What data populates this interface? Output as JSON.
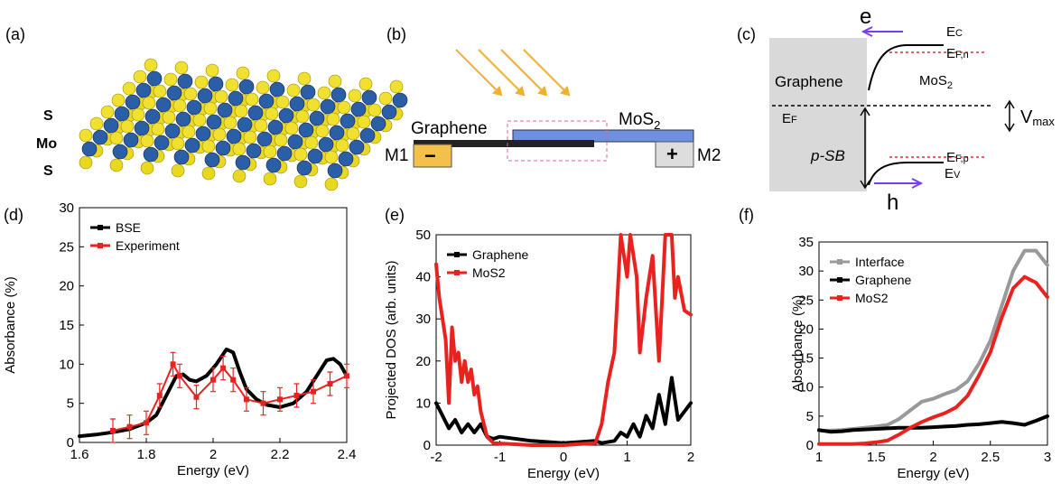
{
  "panels": {
    "a": {
      "label": "(a)",
      "layers": [
        "S",
        "Mo",
        "S"
      ]
    },
    "b": {
      "label": "(b)",
      "graphene": "Graphene",
      "mos2": {
        "main": "MoS",
        "sub": "2"
      },
      "m1": "M1",
      "m2": "M2",
      "minus": "−",
      "plus": "+"
    },
    "c": {
      "label": "(c)",
      "graphene": "Graphene",
      "mos2": {
        "main": "MoS",
        "sub": "2"
      },
      "electron": "e",
      "hole": "h",
      "ec": {
        "main": "E",
        "sub": "C"
      },
      "efn": {
        "main": "E",
        "sub": "F,n"
      },
      "ef": {
        "main": "E",
        "sub": "F"
      },
      "efp": {
        "main": "E",
        "sub": "F,p"
      },
      "ev": {
        "main": "E",
        "sub": "V"
      },
      "vmax": {
        "main": "V",
        "sub": "max"
      },
      "psb": "p-SB"
    }
  },
  "chart_data": [
    {
      "type": "line",
      "panel_label": "(d)",
      "x_label": "Energy (eV)",
      "y_label": "Absorbance (%)",
      "xlim": [
        1.6,
        2.4
      ],
      "xticks": [
        1.6,
        1.8,
        2,
        2.2,
        2.4
      ],
      "ylim": [
        0,
        30
      ],
      "yticks": [
        0,
        5,
        10,
        15,
        20,
        25,
        30
      ],
      "legend": "upper left",
      "series": [
        {
          "name": "BSE",
          "color": "#000000",
          "markers": false,
          "x": [
            1.6,
            1.65,
            1.7,
            1.75,
            1.8,
            1.83,
            1.86,
            1.89,
            1.91,
            1.93,
            1.95,
            1.98,
            2.01,
            2.04,
            2.06,
            2.08,
            2.1,
            2.13,
            2.16,
            2.2,
            2.24,
            2.28,
            2.31,
            2.34,
            2.36,
            2.38,
            2.4
          ],
          "values": [
            0.8,
            1.0,
            1.3,
            1.7,
            2.5,
            3.5,
            6,
            8.5,
            8.7,
            8,
            7.8,
            8.5,
            10,
            11.9,
            11.5,
            9,
            6.8,
            5.5,
            4.8,
            4.5,
            5,
            6.5,
            8.5,
            10.5,
            10.7,
            10,
            8.5
          ]
        },
        {
          "name": "Experiment",
          "color": "#e8231f",
          "markers": true,
          "x": [
            1.7,
            1.75,
            1.8,
            1.84,
            1.88,
            1.9,
            1.95,
            2.0,
            2.03,
            2.06,
            2.1,
            2.15,
            2.2,
            2.25,
            2.3,
            2.35,
            2.4
          ],
          "values": [
            1.5,
            2,
            2.5,
            6,
            10,
            8.5,
            5.8,
            8,
            9.5,
            8,
            5.5,
            5,
            5.5,
            6,
            6.5,
            7.5,
            8.5
          ],
          "errors": [
            1.5,
            1.5,
            1.5,
            1.5,
            1.5,
            1.5,
            1.5,
            1.5,
            1.5,
            1.5,
            1.5,
            1.5,
            1.5,
            1.5,
            1.5,
            1.5,
            1.5
          ]
        }
      ]
    },
    {
      "type": "line",
      "panel_label": "(e)",
      "x_label": "Energy (eV)",
      "y_label": "Projected DOS (arb. units)",
      "xlim": [
        -2,
        2
      ],
      "xticks": [
        -2,
        -1,
        0,
        1,
        2
      ],
      "ylim": [
        0,
        50
      ],
      "yticks": [
        0,
        10,
        20,
        30,
        40,
        50
      ],
      "legend": "upper left",
      "series": [
        {
          "name": "Graphene",
          "color": "#000000",
          "markers": false,
          "x": [
            -2,
            -1.9,
            -1.8,
            -1.7,
            -1.6,
            -1.5,
            -1.4,
            -1.3,
            -1.2,
            -1.1,
            -1,
            -0.5,
            0,
            0.5,
            0.6,
            0.8,
            0.9,
            1.0,
            1.1,
            1.2,
            1.3,
            1.4,
            1.5,
            1.6,
            1.7,
            1.8,
            1.9,
            2
          ],
          "values": [
            10,
            7,
            4,
            6,
            3,
            5,
            3,
            5,
            2,
            1.5,
            2,
            1,
            0.5,
            1,
            0.5,
            1,
            3,
            2,
            5,
            2,
            7,
            4,
            12,
            5,
            16,
            6,
            8,
            10
          ]
        },
        {
          "name": "MoS2",
          "color": "#e8231f",
          "markers": false,
          "x": [
            -2,
            -1.95,
            -1.9,
            -1.85,
            -1.8,
            -1.75,
            -1.7,
            -1.65,
            -1.6,
            -1.55,
            -1.5,
            -1.45,
            -1.4,
            -1.35,
            -1.3,
            -1.2,
            -1.1,
            -0.5,
            0,
            0.5,
            0.6,
            0.7,
            0.8,
            0.9,
            1.0,
            1.05,
            1.15,
            1.2,
            1.3,
            1.4,
            1.5,
            1.6,
            1.7,
            1.75,
            1.8,
            1.9,
            2
          ],
          "values": [
            43,
            35,
            30,
            25,
            10,
            28,
            20,
            22,
            15,
            20,
            15,
            18,
            12,
            14,
            8,
            2,
            0.5,
            0,
            0,
            0.5,
            5,
            15,
            22,
            50,
            40,
            50,
            40,
            22,
            35,
            45,
            20,
            50,
            50,
            35,
            40,
            32,
            31
          ]
        }
      ]
    },
    {
      "type": "line",
      "panel_label": "(f)",
      "x_label": "Energy (eV)",
      "y_label": "Absorbance (%)",
      "xlim": [
        1,
        3
      ],
      "xticks": [
        1,
        1.5,
        2,
        2.5,
        3
      ],
      "ylim": [
        0,
        35
      ],
      "yticks": [
        0,
        5,
        10,
        15,
        20,
        25,
        30,
        35
      ],
      "legend": "upper left",
      "x": [
        1,
        1.1,
        1.2,
        1.3,
        1.4,
        1.5,
        1.6,
        1.7,
        1.8,
        1.9,
        2,
        2.1,
        2.2,
        2.3,
        2.4,
        2.5,
        2.6,
        2.7,
        2.8,
        2.9,
        3
      ],
      "series": [
        {
          "name": "Interface",
          "color": "#999999",
          "markers": false,
          "values": [
            2.5,
            2.5,
            2.6,
            2.8,
            3,
            3.2,
            3.5,
            4.5,
            6,
            7.5,
            8,
            8.8,
            9.5,
            11,
            14,
            18,
            24,
            30,
            33.5,
            33.5,
            31
          ]
        },
        {
          "name": "Graphene",
          "color": "#000000",
          "markers": false,
          "values": [
            2.6,
            2.3,
            2.4,
            2.6,
            2.7,
            2.8,
            2.9,
            3,
            3,
            3,
            3.1,
            3.2,
            3.3,
            3.5,
            3.6,
            3.8,
            4,
            3.8,
            3.5,
            4.2,
            5
          ]
        },
        {
          "name": "MoS2",
          "color": "#e8231f",
          "markers": false,
          "values": [
            0.2,
            0.2,
            0.2,
            0.2,
            0.3,
            0.5,
            0.8,
            1.8,
            3,
            4,
            4.8,
            5.5,
            6.5,
            8.5,
            12,
            16,
            22,
            27,
            29,
            28,
            25.5
          ]
        }
      ]
    }
  ]
}
